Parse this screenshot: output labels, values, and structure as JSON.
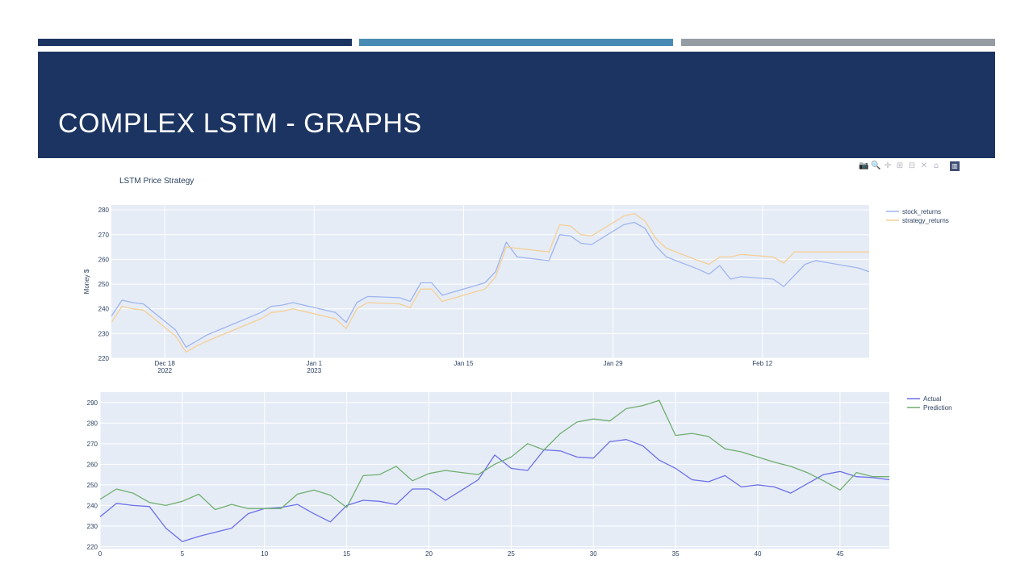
{
  "slide": {
    "title": "COMPLEX LSTM - GRAPHS",
    "banner_color": "#1c3461",
    "accent_bars": [
      "#1c3461",
      "#4a8bb5",
      "#959ca3"
    ]
  },
  "modebar": {
    "icons": [
      "camera-icon",
      "zoom-icon",
      "pan-icon",
      "zoom-in-icon",
      "zoom-out-icon",
      "autoscale-icon",
      "home-icon",
      "plotly-logo-icon"
    ],
    "glyphs": [
      "📷",
      "🔍",
      "✛",
      "⊞",
      "⊟",
      "✕",
      "⌂",
      "▥"
    ]
  },
  "chart_data": [
    {
      "type": "line",
      "title": "LSTM Price Strategy",
      "xlabel": "",
      "ylabel": "Money $",
      "x_axis_type": "date",
      "xlim": [
        "2022-12-13",
        "2023-02-22"
      ],
      "ylim": [
        220,
        282
      ],
      "yticks": [
        220,
        230,
        240,
        250,
        260,
        270,
        280
      ],
      "xticks": [
        {
          "date": "2022-12-18",
          "label": "Dec 18",
          "sublabel": "2022"
        },
        {
          "date": "2023-01-01",
          "label": "Jan 1",
          "sublabel": "2023"
        },
        {
          "date": "2023-01-15",
          "label": "Jan 15",
          "sublabel": ""
        },
        {
          "date": "2023-01-29",
          "label": "Jan 29",
          "sublabel": ""
        },
        {
          "date": "2023-02-12",
          "label": "Feb 12",
          "sublabel": ""
        }
      ],
      "grid": true,
      "legend_position": "top-right",
      "plot_bg": "#e5ecf6",
      "series": [
        {
          "name": "stock_returns",
          "color": "#9fb4ef",
          "points": [
            [
              "2022-12-13",
              237.0
            ],
            [
              "2022-12-14",
              243.5
            ],
            [
              "2022-12-15",
              242.5
            ],
            [
              "2022-12-16",
              242.0
            ],
            [
              "2022-12-19",
              231.5
            ],
            [
              "2022-12-20",
              224.5
            ],
            [
              "2022-12-21",
              227.0
            ],
            [
              "2022-12-22",
              229.5
            ],
            [
              "2022-12-27",
              238.5
            ],
            [
              "2022-12-28",
              241.0
            ],
            [
              "2022-12-29",
              241.5
            ],
            [
              "2022-12-30",
              242.5
            ],
            [
              "2023-01-03",
              238.5
            ],
            [
              "2023-01-04",
              234.5
            ],
            [
              "2023-01-05",
              242.5
            ],
            [
              "2023-01-06",
              245.0
            ],
            [
              "2023-01-09",
              244.5
            ],
            [
              "2023-01-10",
              243.0
            ],
            [
              "2023-01-11",
              250.5
            ],
            [
              "2023-01-12",
              250.5
            ],
            [
              "2023-01-13",
              245.5
            ],
            [
              "2023-01-17",
              250.5
            ],
            [
              "2023-01-18",
              255.0
            ],
            [
              "2023-01-19",
              267.0
            ],
            [
              "2023-01-20",
              261.0
            ],
            [
              "2023-01-23",
              259.5
            ],
            [
              "2023-01-24",
              270.0
            ],
            [
              "2023-01-25",
              269.5
            ],
            [
              "2023-01-26",
              266.5
            ],
            [
              "2023-01-27",
              266.0
            ],
            [
              "2023-01-30",
              274.0
            ],
            [
              "2023-01-31",
              275.0
            ],
            [
              "2023-02-01",
              272.5
            ],
            [
              "2023-02-02",
              265.5
            ],
            [
              "2023-02-03",
              261.0
            ],
            [
              "2023-02-06",
              256.0
            ],
            [
              "2023-02-07",
              254.0
            ],
            [
              "2023-02-08",
              257.5
            ],
            [
              "2023-02-09",
              252.0
            ],
            [
              "2023-02-10",
              253.0
            ],
            [
              "2023-02-13",
              252.0
            ],
            [
              "2023-02-14",
              249.0
            ],
            [
              "2023-02-15",
              253.5
            ],
            [
              "2023-02-16",
              258.0
            ],
            [
              "2023-02-17",
              259.5
            ],
            [
              "2023-02-21",
              256.5
            ],
            [
              "2023-02-22",
              255.0
            ]
          ]
        },
        {
          "name": "strategy_returns",
          "color": "#f5cf95",
          "points": [
            [
              "2022-12-13",
              234.5
            ],
            [
              "2022-12-14",
              241.0
            ],
            [
              "2022-12-15",
              240.0
            ],
            [
              "2022-12-16",
              239.5
            ],
            [
              "2022-12-19",
              229.0
            ],
            [
              "2022-12-20",
              222.5
            ],
            [
              "2022-12-21",
              225.0
            ],
            [
              "2022-12-22",
              227.0
            ],
            [
              "2022-12-27",
              236.0
            ],
            [
              "2022-12-28",
              238.5
            ],
            [
              "2022-12-29",
              239.0
            ],
            [
              "2022-12-30",
              240.0
            ],
            [
              "2023-01-03",
              236.0
            ],
            [
              "2023-01-04",
              232.0
            ],
            [
              "2023-01-05",
              240.0
            ],
            [
              "2023-01-06",
              242.5
            ],
            [
              "2023-01-09",
              242.0
            ],
            [
              "2023-01-10",
              240.5
            ],
            [
              "2023-01-11",
              248.0
            ],
            [
              "2023-01-12",
              248.0
            ],
            [
              "2023-01-13",
              243.0
            ],
            [
              "2023-01-17",
              248.0
            ],
            [
              "2023-01-18",
              253.0
            ],
            [
              "2023-01-19",
              265.0
            ],
            [
              "2023-01-20",
              264.5
            ],
            [
              "2023-01-23",
              263.0
            ],
            [
              "2023-01-24",
              274.0
            ],
            [
              "2023-01-25",
              273.5
            ],
            [
              "2023-01-26",
              270.0
            ],
            [
              "2023-01-27",
              269.5
            ],
            [
              "2023-01-30",
              277.5
            ],
            [
              "2023-01-31",
              278.5
            ],
            [
              "2023-02-01",
              275.5
            ],
            [
              "2023-02-02",
              268.5
            ],
            [
              "2023-02-03",
              264.5
            ],
            [
              "2023-02-06",
              259.5
            ],
            [
              "2023-02-07",
              258.0
            ],
            [
              "2023-02-08",
              261.0
            ],
            [
              "2023-02-09",
              261.0
            ],
            [
              "2023-02-10",
              262.0
            ],
            [
              "2023-02-13",
              261.0
            ],
            [
              "2023-02-14",
              258.5
            ],
            [
              "2023-02-15",
              263.0
            ],
            [
              "2023-02-16",
              263.0
            ],
            [
              "2023-02-17",
              263.0
            ],
            [
              "2023-02-21",
              263.0
            ],
            [
              "2023-02-22",
              263.0
            ]
          ]
        }
      ]
    },
    {
      "type": "line",
      "title": "",
      "xlabel": "",
      "ylabel": "",
      "xlim": [
        0,
        48
      ],
      "ylim": [
        219,
        295
      ],
      "xticks": [
        0,
        5,
        10,
        15,
        20,
        25,
        30,
        35,
        40,
        45
      ],
      "yticks": [
        220,
        230,
        240,
        250,
        260,
        270,
        280,
        290
      ],
      "grid": true,
      "legend_position": "top-right",
      "plot_bg": "#e5ecf6",
      "series": [
        {
          "name": "Actual",
          "color": "#6b6fe6",
          "x": [
            0,
            1,
            2,
            3,
            4,
            5,
            6,
            7,
            8,
            9,
            10,
            11,
            12,
            13,
            14,
            15,
            16,
            17,
            18,
            19,
            20,
            21,
            22,
            23,
            24,
            25,
            26,
            27,
            28,
            29,
            30,
            31,
            32,
            33,
            34,
            35,
            36,
            37,
            38,
            39,
            40,
            41,
            42,
            43,
            44,
            45,
            46,
            47,
            48
          ],
          "values": [
            234.5,
            241,
            240,
            239.5,
            229,
            222.5,
            225,
            227,
            229,
            236,
            238.5,
            239,
            240.5,
            236,
            232,
            240,
            242.5,
            242,
            240.5,
            248,
            248,
            242.5,
            247.5,
            252.5,
            264.5,
            258,
            257,
            267,
            266.5,
            263.5,
            263,
            271,
            272,
            269,
            262,
            258,
            252.5,
            251.5,
            254.5,
            249,
            250,
            249,
            246,
            250.5,
            255,
            256.5,
            254,
            253.5,
            252.5
          ]
        },
        {
          "name": "Prediction",
          "color": "#6fae6e",
          "x": [
            0,
            1,
            2,
            3,
            4,
            5,
            6,
            7,
            8,
            9,
            10,
            11,
            12,
            13,
            14,
            15,
            16,
            17,
            18,
            19,
            20,
            21,
            22,
            23,
            24,
            25,
            26,
            27,
            28,
            29,
            30,
            31,
            32,
            33,
            34,
            35,
            36,
            37,
            38,
            39,
            40,
            41,
            42,
            43,
            44,
            45,
            46,
            47,
            48
          ],
          "values": [
            243,
            248,
            246,
            241.5,
            240,
            242,
            245.5,
            238,
            240.5,
            238.5,
            238.5,
            238.5,
            245.5,
            247.5,
            245,
            239,
            254.5,
            255,
            259,
            252,
            255.5,
            257,
            256,
            255,
            260,
            263.5,
            270,
            267,
            275,
            280.5,
            282,
            281,
            287,
            288.5,
            291,
            274,
            275,
            273.5,
            267.5,
            266,
            263.5,
            261,
            259,
            256,
            252,
            247.5,
            256,
            254,
            254
          ]
        }
      ]
    }
  ]
}
